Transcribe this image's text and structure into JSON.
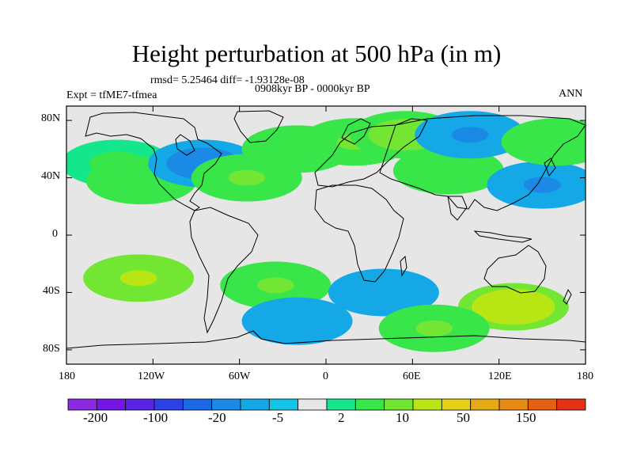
{
  "header": {
    "title": "Height perturbation at 500 hPa (in m)",
    "stats": "rmsd= 5.25464 diff= -1.93128e-08",
    "experiment": "Expt = tfME7-tfmea",
    "period": "0908kyr BP - 0000kyr BP",
    "season": "ANN"
  },
  "map": {
    "projection": "cylindrical equidistant",
    "lon_range": [
      -180,
      180
    ],
    "lat_range": [
      -90,
      90
    ],
    "lat_ticks": [
      "80N",
      "40N",
      "0",
      "40S",
      "80S"
    ],
    "lon_ticks": [
      "180",
      "120W",
      "60W",
      "0",
      "60E",
      "120E",
      "180"
    ],
    "background_color": "#e6e6e6",
    "coastline_color": "#000000",
    "anomalies": [
      {
        "lon": -145,
        "lat": 50,
        "value": 5
      },
      {
        "lon": -128,
        "lat": 38,
        "value": 8
      },
      {
        "lon": -85,
        "lat": 50,
        "value": -15
      },
      {
        "lon": -55,
        "lat": 40,
        "value": 12
      },
      {
        "lon": -20,
        "lat": 60,
        "value": 8
      },
      {
        "lon": 20,
        "lat": 65,
        "value": 12
      },
      {
        "lon": 55,
        "lat": 70,
        "value": 18
      },
      {
        "lon": 85,
        "lat": 45,
        "value": 8
      },
      {
        "lon": 100,
        "lat": 70,
        "value": -10
      },
      {
        "lon": 150,
        "lat": 35,
        "value": -10
      },
      {
        "lon": 160,
        "lat": 65,
        "value": 8
      },
      {
        "lon": -130,
        "lat": -30,
        "value": 20
      },
      {
        "lon": -35,
        "lat": -35,
        "value": 10
      },
      {
        "lon": -20,
        "lat": -60,
        "value": -8
      },
      {
        "lon": 40,
        "lat": -40,
        "value": -8
      },
      {
        "lon": 130,
        "lat": -50,
        "value": 40
      },
      {
        "lon": 75,
        "lat": -65,
        "value": 10
      }
    ]
  },
  "colorbar": {
    "labels": [
      "-200",
      "-100",
      "-20",
      "-5",
      "2",
      "10",
      "50",
      "150"
    ],
    "colors": [
      "#8a2be2",
      "#7316e6",
      "#5a23e6",
      "#2d42e6",
      "#1a6ae6",
      "#1a8ae6",
      "#14a8e6",
      "#14c4e6",
      "#e6e6e6",
      "#14e68c",
      "#38e64a",
      "#72e632",
      "#b8e614",
      "#e6d014",
      "#e6aa14",
      "#e68a14",
      "#e66014",
      "#e63214"
    ]
  }
}
